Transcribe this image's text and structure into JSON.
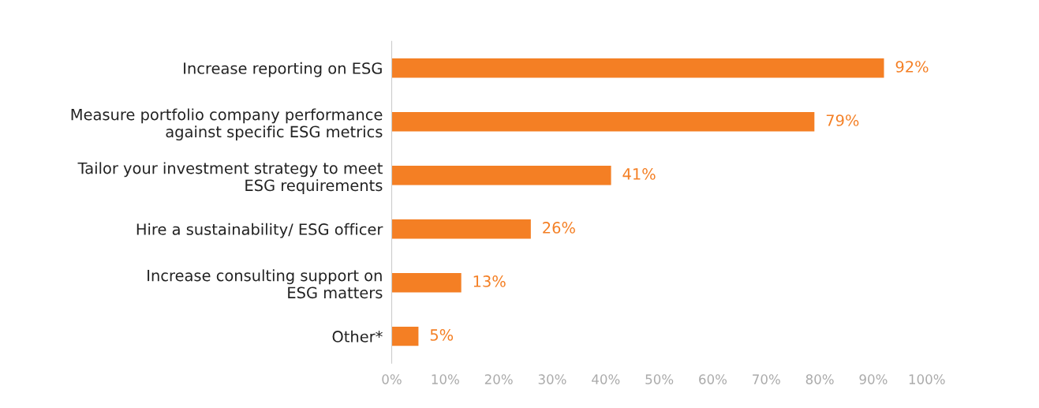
{
  "chart_data": {
    "type": "bar",
    "orientation": "horizontal",
    "categories": [
      "Increase reporting on ESG",
      "Measure portfolio company performance\nagainst specific ESG metrics",
      "Tailor your investment strategy to meet\nESG requirements",
      "Hire a sustainability/ ESG officer",
      "Increase consulting support on\nESG matters",
      "Other*"
    ],
    "values": [
      92,
      79,
      41,
      26,
      13,
      5
    ],
    "value_labels": [
      "92%",
      "79%",
      "41%",
      "26%",
      "13%",
      "5%"
    ],
    "color": "#f47f24",
    "xlim": [
      0,
      100
    ],
    "xticks": [
      {
        "value": 0,
        "label": "0%"
      },
      {
        "value": 10,
        "label": "10%"
      },
      {
        "value": 20,
        "label": "20%"
      },
      {
        "value": 30,
        "label": "30%"
      },
      {
        "value": 40,
        "label": "40%"
      },
      {
        "value": 50,
        "label": "50%"
      },
      {
        "value": 60,
        "label": "60%"
      },
      {
        "value": 70,
        "label": "70%"
      },
      {
        "value": 80,
        "label": "80%"
      },
      {
        "value": 90,
        "label": "90%"
      },
      {
        "value": 100,
        "label": "100%"
      }
    ],
    "grid": false,
    "legend": false
  }
}
